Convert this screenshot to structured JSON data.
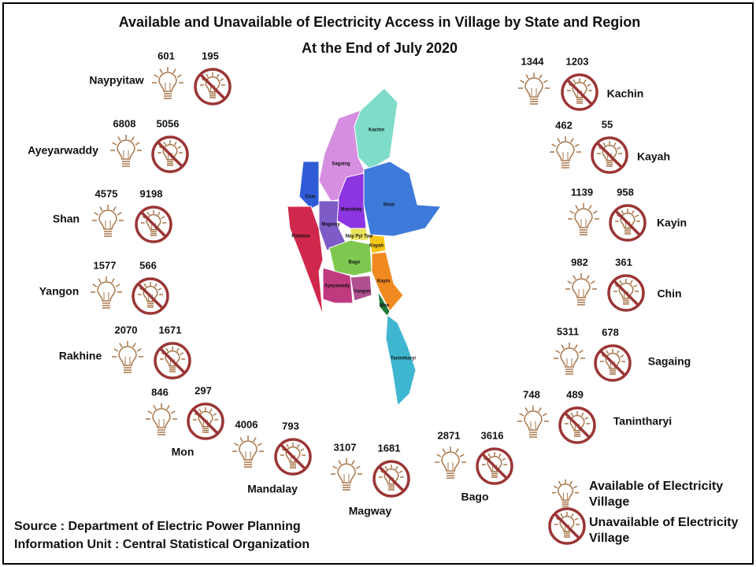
{
  "header": {
    "title": "Available and Unavailable of Electricity Access in Village by State and Region",
    "subtitle": "At the End of  July 2020"
  },
  "regions": [
    {
      "name": "Naypyitaw",
      "available": "601",
      "unavailable": "195"
    },
    {
      "name": "Ayeyarwaddy",
      "available": "6808",
      "unavailable": "5056"
    },
    {
      "name": "Shan",
      "available": "4575",
      "unavailable": "9198"
    },
    {
      "name": "Yangon",
      "available": "1577",
      "unavailable": "566"
    },
    {
      "name": "Rakhine",
      "available": "2070",
      "unavailable": "1671"
    },
    {
      "name": "Mon",
      "available": "846",
      "unavailable": "297"
    },
    {
      "name": "Mandalay",
      "available": "4006",
      "unavailable": "793"
    },
    {
      "name": "Magway",
      "available": "3107",
      "unavailable": "1681"
    },
    {
      "name": "Bago",
      "available": "2871",
      "unavailable": "3616"
    },
    {
      "name": "Kachin",
      "available": "1344",
      "unavailable": "1203"
    },
    {
      "name": "Kayah",
      "available": "462",
      "unavailable": "55"
    },
    {
      "name": "Kayin",
      "available": "1139",
      "unavailable": "958"
    },
    {
      "name": "Chin",
      "available": "982",
      "unavailable": "361"
    },
    {
      "name": "Sagaing",
      "available": "5311",
      "unavailable": "678"
    },
    {
      "name": "Tanintharyi",
      "available": "748",
      "unavailable": "489"
    }
  ],
  "map": {
    "labels": [
      "Kachin",
      "Sagaing",
      "Chin",
      "Shan",
      "Mandalay",
      "Magway",
      "Rakhine",
      "Nay Pyi Taw",
      "Kayah",
      "Bago",
      "Kayin",
      "Ayeyawady",
      "Yangon",
      "Mon",
      "Tanintharyi"
    ]
  },
  "legend": {
    "available": "Available of Electricity Village",
    "unavailable": "Unavailable of Electricity Village"
  },
  "source": [
    "Source : Department of Electric Power Planning",
    "Information Unit : Central Statistical Organization"
  ]
}
